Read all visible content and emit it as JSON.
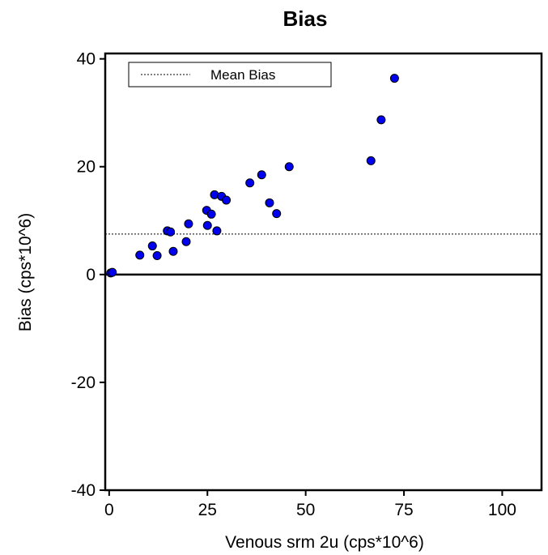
{
  "chart_data": {
    "type": "scatter",
    "title": "Bias",
    "xlabel": "Venous srm 2u (cps*10^6)",
    "ylabel": "Bias (cps*10^6)",
    "xlim": [
      -1,
      110
    ],
    "ylim": [
      -40,
      41
    ],
    "xticks": [
      0,
      25,
      50,
      75,
      100
    ],
    "yticks": [
      -40,
      -20,
      0,
      20,
      40
    ],
    "xtick_labels": [
      "0",
      "25",
      "50",
      "75",
      "100"
    ],
    "ytick_labels": [
      "-40",
      "-20",
      "0",
      "20",
      "40"
    ],
    "grid": false,
    "legend": {
      "placement": "top-left",
      "entries": [
        "Mean Bias"
      ]
    },
    "reference_lines": [
      {
        "name": "zero",
        "y": 0,
        "style": "solid"
      },
      {
        "name": "Mean Bias",
        "y": 7.5,
        "style": "dotted"
      }
    ],
    "marker_color": "#0000ee",
    "points": [
      {
        "x": 0.4,
        "y": 0.3
      },
      {
        "x": 0.8,
        "y": 0.4
      },
      {
        "x": 7.8,
        "y": 3.6
      },
      {
        "x": 11.0,
        "y": 5.3
      },
      {
        "x": 12.2,
        "y": 3.5
      },
      {
        "x": 14.8,
        "y": 8.1
      },
      {
        "x": 15.6,
        "y": 7.9
      },
      {
        "x": 16.3,
        "y": 4.3
      },
      {
        "x": 19.6,
        "y": 6.1
      },
      {
        "x": 20.2,
        "y": 9.4
      },
      {
        "x": 24.8,
        "y": 11.9
      },
      {
        "x": 25.0,
        "y": 9.1
      },
      {
        "x": 26.0,
        "y": 11.2
      },
      {
        "x": 26.8,
        "y": 14.8
      },
      {
        "x": 27.4,
        "y": 8.1
      },
      {
        "x": 28.6,
        "y": 14.5
      },
      {
        "x": 29.8,
        "y": 13.8
      },
      {
        "x": 35.8,
        "y": 17.0
      },
      {
        "x": 38.8,
        "y": 18.5
      },
      {
        "x": 40.8,
        "y": 13.3
      },
      {
        "x": 42.6,
        "y": 11.3
      },
      {
        "x": 45.8,
        "y": 20.0
      },
      {
        "x": 66.6,
        "y": 21.1
      },
      {
        "x": 69.2,
        "y": 28.7
      },
      {
        "x": 72.6,
        "y": 36.4
      }
    ]
  }
}
